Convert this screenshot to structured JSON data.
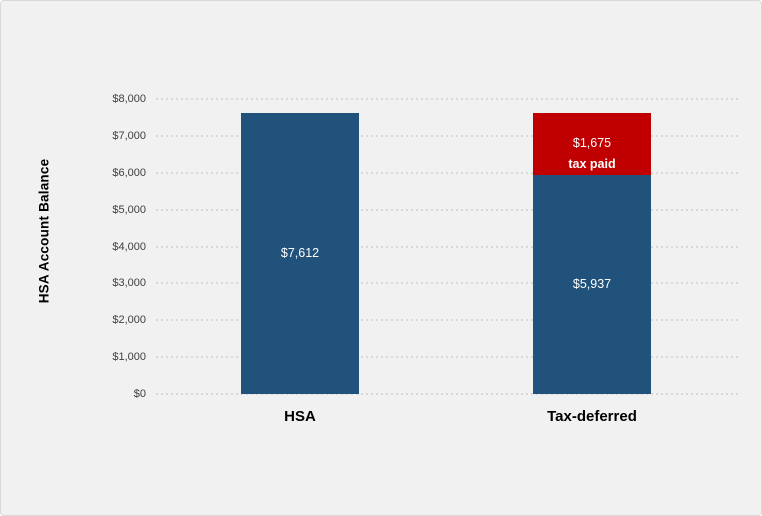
{
  "card": {
    "background": "#F1F1F1",
    "border_color": "#D9D9D9"
  },
  "chart_data": {
    "type": "bar",
    "stacked": true,
    "orientation": "vertical",
    "title": "",
    "xlabel": "",
    "ylabel": "HSA Account Balance",
    "ylim": [
      0,
      8000
    ],
    "grid": {
      "horizontal": true,
      "style": "dotted",
      "color": "#D8D8D8"
    },
    "legend": "none",
    "value_label_color": "#FFFFFF",
    "yticks": [
      {
        "value": 0,
        "label": "$0"
      },
      {
        "value": 1000,
        "label": "$1,000"
      },
      {
        "value": 2000,
        "label": "$2,000"
      },
      {
        "value": 3000,
        "label": "$3,000"
      },
      {
        "value": 4000,
        "label": "$4,000"
      },
      {
        "value": 5000,
        "label": "$5,000"
      },
      {
        "value": 6000,
        "label": "$6,000"
      },
      {
        "value": 7000,
        "label": "$7,000"
      },
      {
        "value": 8000,
        "label": "$8,000"
      }
    ],
    "categories": [
      "HSA",
      "Tax-deferred"
    ],
    "bars": [
      {
        "category": "HSA",
        "total": 7612,
        "segments": [
          {
            "name": "hsa-balance",
            "value": 7612,
            "label": "$7,612",
            "sublabel": "",
            "color": "#20527C"
          }
        ]
      },
      {
        "category": "Tax-deferred",
        "total": 7612,
        "segments": [
          {
            "name": "after-tax-balance",
            "value": 5937,
            "label": "$5,937",
            "sublabel": "",
            "color": "#20527C"
          },
          {
            "name": "tax-paid",
            "value": 1675,
            "label": "$1,675",
            "sublabel": "tax paid",
            "color": "#C00000"
          }
        ]
      }
    ]
  }
}
